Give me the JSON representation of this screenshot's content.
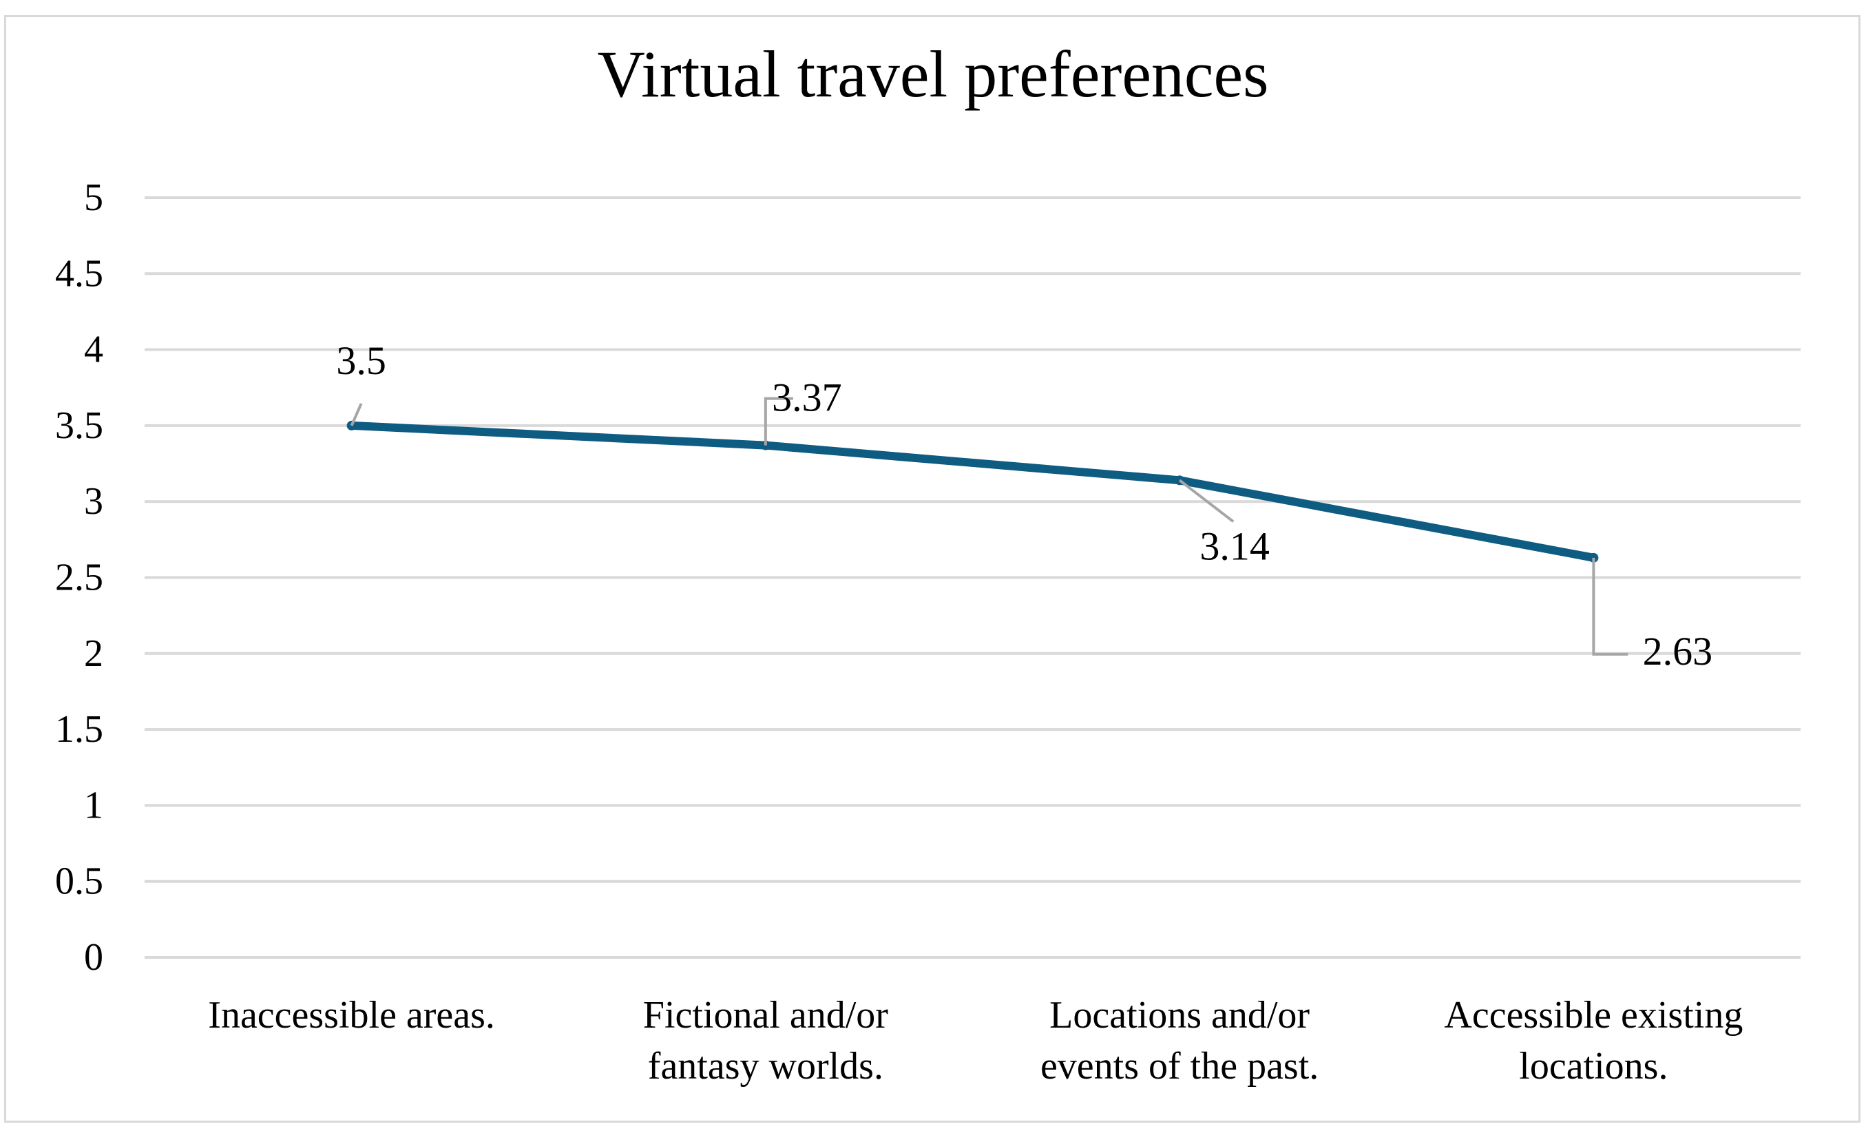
{
  "chart_data": {
    "type": "line",
    "title": "Virtual travel preferences",
    "xlabel": "",
    "ylabel": "",
    "categories": [
      [
        "Inaccessible areas."
      ],
      [
        "Fictional and/or",
        "fantasy worlds."
      ],
      [
        "Locations and/or",
        "events of the past."
      ],
      [
        "Accessible existing",
        "locations."
      ]
    ],
    "series": [
      {
        "values": [
          3.5,
          3.37,
          3.14,
          2.63
        ],
        "data_labels": [
          "3.5",
          "3.37",
          "3.14",
          "2.63"
        ],
        "color": "#0e5c82"
      }
    ],
    "ylim": [
      0,
      5
    ],
    "yticks": [
      "0",
      "0.5",
      "1",
      "1.5",
      "2",
      "2.5",
      "3",
      "3.5",
      "4",
      "4.5",
      "5"
    ],
    "grid": true,
    "legend": "none"
  },
  "colors": {
    "grid": "#d9d9d9",
    "leader": "#a6a6a6",
    "border": "#d9d9d9"
  }
}
